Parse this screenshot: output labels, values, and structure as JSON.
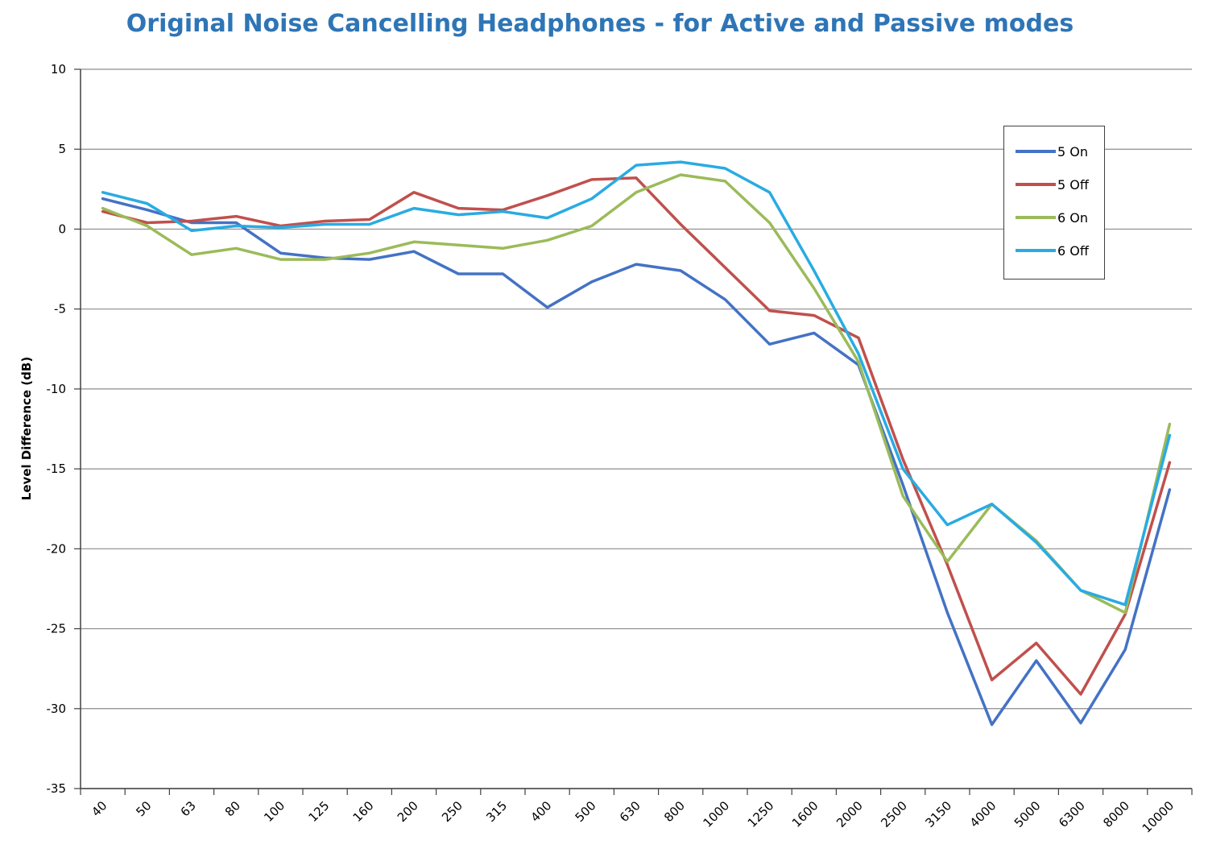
{
  "chart_data": {
    "type": "line",
    "title": "Original Noise Cancelling Headphones - for Active and Passive modes",
    "xlabel": "",
    "ylabel": "Level Difference (dB)",
    "ylim": [
      -35,
      10
    ],
    "yticks": [
      "10",
      "5",
      "0",
      "-5",
      "-10",
      "-15",
      "-20",
      "-25",
      "-30",
      "-35"
    ],
    "categories": [
      "40",
      "50",
      "63",
      "80",
      "100",
      "125",
      "160",
      "200",
      "250",
      "315",
      "400",
      "500",
      "630",
      "800",
      "1000",
      "1250",
      "1600",
      "2000",
      "2500",
      "3150",
      "4000",
      "5000",
      "6300",
      "8000",
      "10000"
    ],
    "grid": true,
    "legend_position": "top-right",
    "series": [
      {
        "name": "5 On",
        "color": "#4472c4",
        "values": [
          1.9,
          1.2,
          0.4,
          0.4,
          -1.5,
          -1.8,
          -1.9,
          -1.4,
          -2.8,
          -2.8,
          -4.9,
          -3.3,
          -2.2,
          -2.6,
          -4.4,
          -7.2,
          -6.5,
          -8.5,
          -16.0,
          -24.0,
          -31.0,
          -27.0,
          -30.9,
          -26.3,
          -16.3
        ]
      },
      {
        "name": "5 Off",
        "color": "#c0504d",
        "values": [
          1.1,
          0.4,
          0.5,
          0.8,
          0.2,
          0.5,
          0.6,
          2.3,
          1.3,
          1.2,
          2.1,
          3.1,
          3.2,
          0.3,
          -2.4,
          -5.1,
          -5.4,
          -6.8,
          -14.4,
          -21.0,
          -28.2,
          -25.9,
          -29.1,
          -24.1,
          -14.6
        ]
      },
      {
        "name": "6 On",
        "color": "#9bbb59",
        "values": [
          1.3,
          0.2,
          -1.6,
          -1.2,
          -1.9,
          -1.9,
          -1.5,
          -0.8,
          -1.0,
          -1.2,
          -0.7,
          0.2,
          2.3,
          3.4,
          3.0,
          0.4,
          -3.7,
          -8.3,
          -16.7,
          -20.8,
          -17.2,
          -19.5,
          -22.6,
          -24.0,
          -12.2
        ]
      },
      {
        "name": "6 Off",
        "color": "#29abe2",
        "values": [
          2.3,
          1.6,
          -0.1,
          0.2,
          0.1,
          0.3,
          0.3,
          1.3,
          0.9,
          1.1,
          0.7,
          1.9,
          4.0,
          4.2,
          3.8,
          2.3,
          -2.6,
          -7.8,
          -15.0,
          -18.5,
          -17.2,
          -19.6,
          -22.6,
          -23.5,
          -12.9
        ]
      }
    ]
  }
}
